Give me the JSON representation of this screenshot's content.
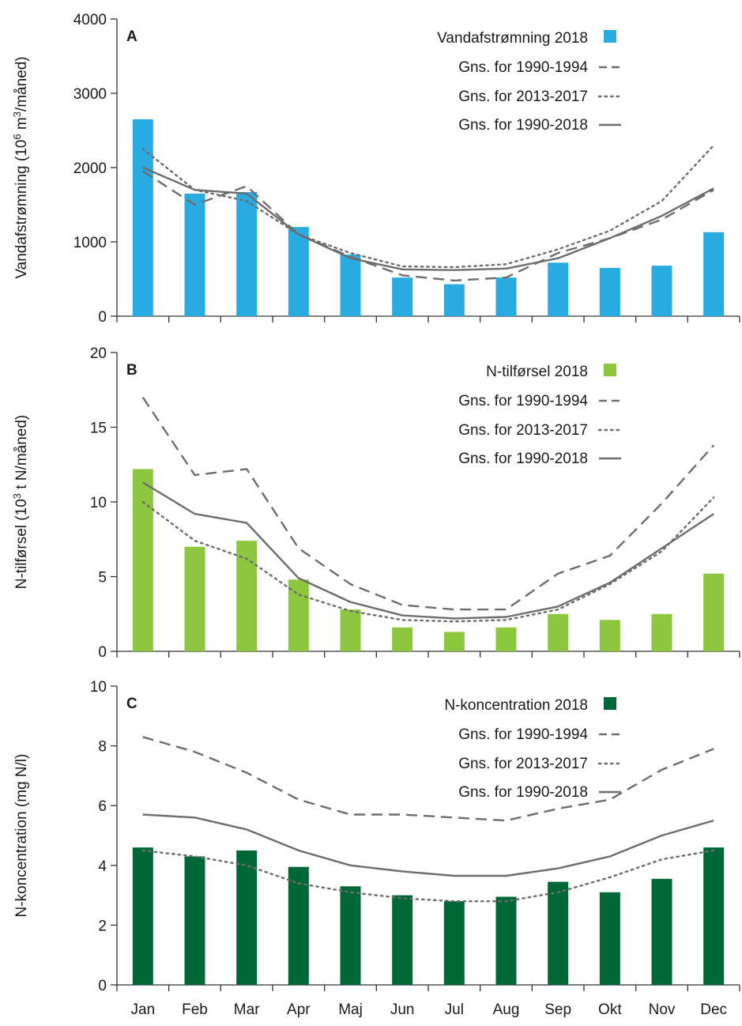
{
  "chart_data": [
    {
      "panel_label": "A",
      "type": "bar+line",
      "ylabel_main": "Vandafstrømning (10",
      "ylabel_sup": "6",
      "ylabel_mid": " m",
      "ylabel_sup2": "3",
      "ylabel_end": "/måned)",
      "ylim": [
        0,
        4000
      ],
      "yticks": [
        "0",
        "1000",
        "2000",
        "3000",
        "4000"
      ],
      "ytick_values": [
        0,
        1000,
        2000,
        3000,
        4000
      ],
      "categories": [
        "Jan",
        "Feb",
        "Mar",
        "Apr",
        "Maj",
        "Jun",
        "Jul",
        "Aug",
        "Sep",
        "Okt",
        "Nov",
        "Dec"
      ],
      "bar_color": "#29abe2",
      "bars": {
        "name": "Vandafstrømning 2018",
        "values": [
          2650,
          1650,
          1670,
          1200,
          830,
          520,
          430,
          520,
          720,
          650,
          680,
          1130
        ]
      },
      "series": [
        {
          "name": "Gns. for 1990-1994",
          "style": "dashed",
          "values": [
            1950,
            1500,
            1750,
            1100,
            800,
            550,
            480,
            520,
            850,
            1050,
            1300,
            1700
          ]
        },
        {
          "name": "Gns. for 2013-2017",
          "style": "dotted",
          "values": [
            2250,
            1700,
            1550,
            1100,
            850,
            670,
            660,
            700,
            900,
            1150,
            1550,
            2300
          ]
        },
        {
          "name": "Gns. for 1990-2018",
          "style": "solid",
          "values": [
            2000,
            1700,
            1650,
            1100,
            780,
            630,
            620,
            640,
            780,
            1050,
            1350,
            1720
          ]
        }
      ],
      "legend_position": "top-right",
      "grid": false
    },
    {
      "panel_label": "B",
      "type": "bar+line",
      "ylabel_main": "N-tilførsel (10",
      "ylabel_sup": "3",
      "ylabel_mid": " t N/måned)",
      "ylabel_sup2": "",
      "ylabel_end": "",
      "ylim": [
        0,
        20
      ],
      "yticks": [
        "0",
        "5",
        "10",
        "15",
        "20"
      ],
      "ytick_values": [
        0,
        5,
        10,
        15,
        20
      ],
      "categories": [
        "Jan",
        "Feb",
        "Mar",
        "Apr",
        "Maj",
        "Jun",
        "Jul",
        "Aug",
        "Sep",
        "Okt",
        "Nov",
        "Dec"
      ],
      "bar_color": "#8dc63f",
      "bars": {
        "name": "N-tilførsel 2018",
        "values": [
          12.2,
          7.0,
          7.4,
          4.8,
          2.8,
          1.6,
          1.3,
          1.6,
          2.5,
          2.1,
          2.5,
          5.2
        ]
      },
      "series": [
        {
          "name": "Gns. for 1990-1994",
          "style": "dashed",
          "values": [
            17.0,
            11.8,
            12.2,
            6.9,
            4.5,
            3.1,
            2.8,
            2.8,
            5.2,
            6.4,
            9.9,
            13.8
          ]
        },
        {
          "name": "Gns. for 2013-2017",
          "style": "dotted",
          "values": [
            10.0,
            7.4,
            6.2,
            3.8,
            2.7,
            2.1,
            2.0,
            2.1,
            2.8,
            4.5,
            6.7,
            10.3
          ]
        },
        {
          "name": "Gns. for 1990-2018",
          "style": "solid",
          "values": [
            11.3,
            9.2,
            8.6,
            4.9,
            3.3,
            2.4,
            2.2,
            2.3,
            3.0,
            4.6,
            6.9,
            9.2
          ]
        }
      ],
      "legend_position": "top-right",
      "grid": false
    },
    {
      "panel_label": "C",
      "type": "bar+line",
      "ylabel_main": "N-koncentration (mg N/l)",
      "ylabel_sup": "",
      "ylabel_mid": "",
      "ylabel_sup2": "",
      "ylabel_end": "",
      "ylim": [
        0,
        10
      ],
      "yticks": [
        "0",
        "2",
        "4",
        "6",
        "8",
        "10"
      ],
      "ytick_values": [
        0,
        2,
        4,
        6,
        8,
        10
      ],
      "categories": [
        "Jan",
        "Feb",
        "Mar",
        "Apr",
        "Maj",
        "Jun",
        "Jul",
        "Aug",
        "Sep",
        "Okt",
        "Nov",
        "Dec"
      ],
      "bar_color": "#006837",
      "bars": {
        "name": "N-koncentration 2018",
        "values": [
          4.6,
          4.3,
          4.5,
          3.95,
          3.3,
          3.0,
          2.8,
          2.95,
          3.45,
          3.1,
          3.55,
          4.6
        ]
      },
      "series": [
        {
          "name": "Gns. for 1990-1994",
          "style": "dashed",
          "values": [
            8.3,
            7.8,
            7.1,
            6.2,
            5.7,
            5.7,
            5.6,
            5.5,
            5.9,
            6.2,
            7.2,
            7.9
          ]
        },
        {
          "name": "Gns. for 2013-2017",
          "style": "dotted",
          "values": [
            4.5,
            4.3,
            4.0,
            3.4,
            3.1,
            2.9,
            2.8,
            2.8,
            3.1,
            3.6,
            4.2,
            4.5
          ]
        },
        {
          "name": "Gns. for 1990-2018",
          "style": "solid",
          "values": [
            5.7,
            5.6,
            5.2,
            4.5,
            4.0,
            3.8,
            3.65,
            3.65,
            3.9,
            4.3,
            5.0,
            5.5
          ]
        }
      ],
      "legend_position": "top-right",
      "grid": false
    }
  ]
}
